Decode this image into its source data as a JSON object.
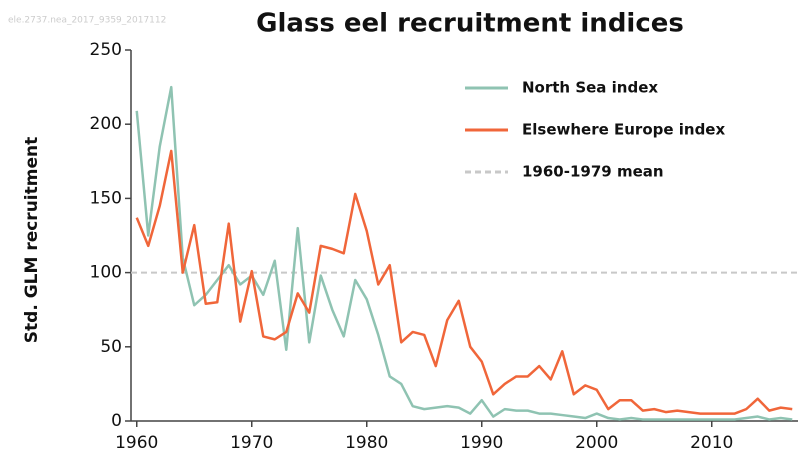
{
  "chart_data": {
    "type": "line",
    "title": "Glass eel recruitment indices",
    "watermark": "ele.2737.nea_2017_9359_2017112",
    "y_label": "Std. GLM recruitment",
    "x": [
      1960,
      1961,
      1962,
      1963,
      1964,
      1965,
      1966,
      1967,
      1968,
      1969,
      1970,
      1971,
      1972,
      1973,
      1974,
      1975,
      1976,
      1977,
      1978,
      1979,
      1980,
      1981,
      1982,
      1983,
      1984,
      1985,
      1986,
      1987,
      1988,
      1989,
      1990,
      1991,
      1992,
      1993,
      1994,
      1995,
      1996,
      1997,
      1998,
      1999,
      2000,
      2001,
      2002,
      2003,
      2004,
      2005,
      2006,
      2007,
      2008,
      2009,
      2010,
      2011,
      2012,
      2013,
      2014,
      2015,
      2016,
      2017
    ],
    "series": [
      {
        "name": "North Sea index",
        "color": "#8fc3b2",
        "values": [
          209,
          125,
          185,
          225,
          110,
          78,
          85,
          95,
          105,
          92,
          98,
          85,
          108,
          48,
          130,
          53,
          98,
          75,
          57,
          95,
          82,
          58,
          30,
          25,
          10,
          8,
          9,
          10,
          9,
          5,
          14,
          3,
          8,
          7,
          7,
          5,
          5,
          4,
          3,
          2,
          5,
          2,
          1,
          2,
          1,
          1,
          1,
          1,
          1,
          1,
          1,
          1,
          1,
          2,
          3,
          1,
          2,
          1
        ]
      },
      {
        "name": "Elsewhere Europe index",
        "color": "#f0663a",
        "values": [
          137,
          118,
          145,
          182,
          100,
          132,
          79,
          80,
          133,
          67,
          101,
          57,
          55,
          60,
          86,
          73,
          118,
          116,
          113,
          153,
          128,
          92,
          105,
          53,
          60,
          58,
          37,
          68,
          81,
          50,
          40,
          18,
          25,
          30,
          30,
          37,
          28,
          47,
          18,
          24,
          21,
          8,
          14,
          14,
          7,
          8,
          6,
          7,
          6,
          5,
          5,
          5,
          5,
          8,
          15,
          7,
          9,
          8
        ]
      }
    ],
    "mean": {
      "name": "1960-1979 mean",
      "color": "#c8c8c8",
      "value": 100
    },
    "xlim": [
      1959.5,
      2017.5
    ],
    "ylim": [
      0,
      250
    ],
    "xticks": [
      1960,
      1970,
      1980,
      1990,
      2000,
      2010
    ],
    "yticks": [
      0,
      50,
      100,
      150,
      200,
      250
    ],
    "legend": "upper right"
  }
}
